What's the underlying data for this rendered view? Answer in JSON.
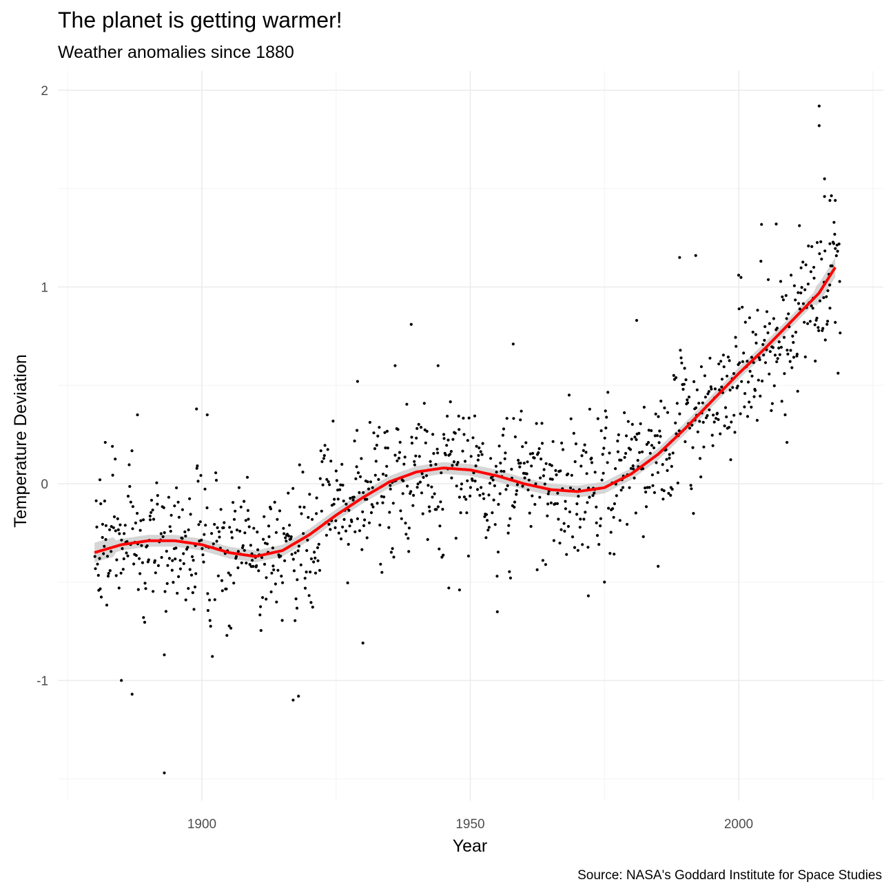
{
  "chart_data": {
    "type": "scatter",
    "title": "The planet is getting warmer!",
    "subtitle": "Weather anomalies since 1880",
    "xlabel": "Year",
    "ylabel": "Temperature Deviation",
    "caption": "Source: NASA's Goddard Institute for Space Studies",
    "xlim": [
      1875,
      2026
    ],
    "ylim": [
      -1.6,
      2.05
    ],
    "x_ticks": [
      1900,
      1950,
      2000
    ],
    "x_minor": [
      1875,
      1925,
      1975,
      2025
    ],
    "y_ticks": [
      -1,
      0,
      1,
      2
    ],
    "y_minor": [
      -1.5,
      -0.5,
      0.5,
      1.5
    ],
    "grid": true,
    "legend": "none",
    "colors": {
      "points": "#000000",
      "smooth": "#ff0000",
      "ribbon": "#c8c8c8"
    },
    "smooth_curve": [
      {
        "x": 1880,
        "y": -0.35
      },
      {
        "x": 1885,
        "y": -0.31
      },
      {
        "x": 1890,
        "y": -0.29
      },
      {
        "x": 1895,
        "y": -0.29
      },
      {
        "x": 1900,
        "y": -0.31
      },
      {
        "x": 1905,
        "y": -0.35
      },
      {
        "x": 1910,
        "y": -0.37
      },
      {
        "x": 1915,
        "y": -0.34
      },
      {
        "x": 1920,
        "y": -0.26
      },
      {
        "x": 1925,
        "y": -0.16
      },
      {
        "x": 1930,
        "y": -0.07
      },
      {
        "x": 1935,
        "y": 0.01
      },
      {
        "x": 1940,
        "y": 0.06
      },
      {
        "x": 1945,
        "y": 0.08
      },
      {
        "x": 1950,
        "y": 0.07
      },
      {
        "x": 1955,
        "y": 0.04
      },
      {
        "x": 1960,
        "y": 0.0
      },
      {
        "x": 1965,
        "y": -0.03
      },
      {
        "x": 1970,
        "y": -0.04
      },
      {
        "x": 1975,
        "y": -0.02
      },
      {
        "x": 1980,
        "y": 0.05
      },
      {
        "x": 1985,
        "y": 0.15
      },
      {
        "x": 1990,
        "y": 0.28
      },
      {
        "x": 1995,
        "y": 0.42
      },
      {
        "x": 2000,
        "y": 0.56
      },
      {
        "x": 2005,
        "y": 0.69
      },
      {
        "x": 2010,
        "y": 0.83
      },
      {
        "x": 2015,
        "y": 0.97
      },
      {
        "x": 2018,
        "y": 1.1
      }
    ],
    "points": [
      {
        "x": 1881,
        "y": 0.02
      },
      {
        "x": 1882,
        "y": 0.21
      },
      {
        "x": 1885,
        "y": -1.0
      },
      {
        "x": 1887,
        "y": -1.07
      },
      {
        "x": 1888,
        "y": 0.35
      },
      {
        "x": 1893,
        "y": -0.87
      },
      {
        "x": 1893,
        "y": -1.47
      },
      {
        "x": 1899,
        "y": 0.38
      },
      {
        "x": 1901,
        "y": 0.35
      },
      {
        "x": 1917,
        "y": -1.1
      },
      {
        "x": 1918,
        "y": -1.08
      },
      {
        "x": 1929,
        "y": 0.52
      },
      {
        "x": 1930,
        "y": -0.81
      },
      {
        "x": 1936,
        "y": 0.6
      },
      {
        "x": 1939,
        "y": 0.81
      },
      {
        "x": 1944,
        "y": 0.6
      },
      {
        "x": 1946,
        "y": -0.53
      },
      {
        "x": 1948,
        "y": -0.54
      },
      {
        "x": 1955,
        "y": -0.47
      },
      {
        "x": 1958,
        "y": 0.71
      },
      {
        "x": 1972,
        "y": -0.57
      },
      {
        "x": 1975,
        "y": -0.5
      },
      {
        "x": 1981,
        "y": 0.83
      },
      {
        "x": 1985,
        "y": -0.42
      },
      {
        "x": 1989,
        "y": 1.15
      },
      {
        "x": 1992,
        "y": 1.16
      },
      {
        "x": 2000,
        "y": 1.06
      },
      {
        "x": 2007,
        "y": 1.32
      },
      {
        "x": 2009,
        "y": 0.21
      },
      {
        "x": 2014,
        "y": 1.1
      },
      {
        "x": 2015,
        "y": 1.92
      },
      {
        "x": 2015,
        "y": 1.82
      },
      {
        "x": 2016,
        "y": 1.55
      },
      {
        "x": 2016,
        "y": 1.46
      },
      {
        "x": 2017,
        "y": 1.44
      },
      {
        "x": 2018,
        "y": 1.44
      },
      {
        "x": 2018,
        "y": 0.82
      },
      {
        "x": 2017,
        "y": 1.22
      },
      {
        "x": 2011,
        "y": 0.47
      },
      {
        "x": 2003,
        "y": 0.48
      }
    ],
    "point_cloud_spread": 0.16
  }
}
